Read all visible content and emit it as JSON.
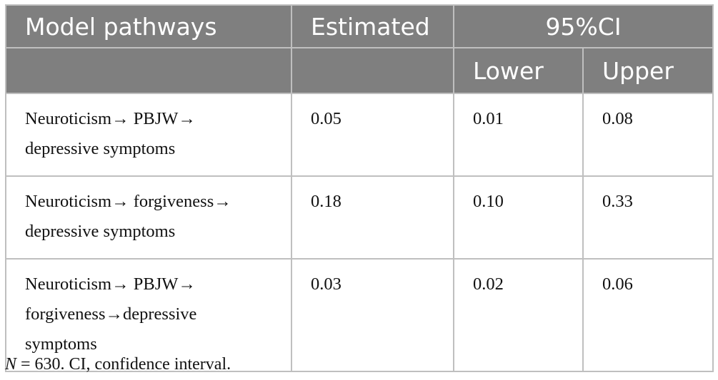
{
  "table": {
    "headers": {
      "model_pathways": "Model pathways",
      "estimated": "Estimated",
      "ci": "95%CI",
      "lower": "Lower",
      "upper": "Upper"
    },
    "rows": [
      {
        "pathway_line1": "Neuroticism→ PBJW→",
        "pathway_line2": "depressive symptoms",
        "pathway_line3": "",
        "estimated": "0.05",
        "lower": "0.01",
        "upper": "0.08"
      },
      {
        "pathway_line1": "Neuroticism→ forgiveness→",
        "pathway_line2": "depressive symptoms",
        "pathway_line3": "",
        "estimated": "0.18",
        "lower": "0.10",
        "upper": "0.33"
      },
      {
        "pathway_line1": "Neuroticism→ PBJW→",
        "pathway_line2": "forgiveness→depressive",
        "pathway_line3": "symptoms",
        "estimated": "0.03",
        "lower": "0.02",
        "upper": "0.06"
      }
    ]
  },
  "footnote": {
    "n_label": "N",
    "text": " = 630. CI, confidence interval."
  }
}
